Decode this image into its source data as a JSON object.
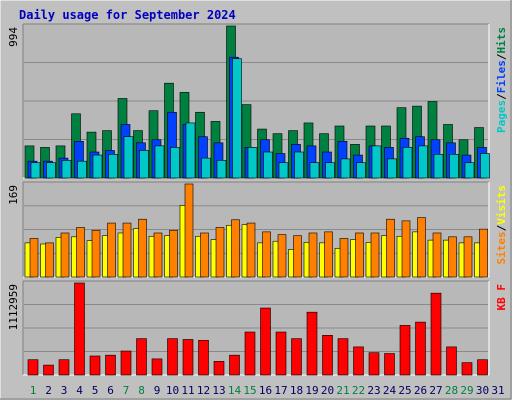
{
  "chart_data": {
    "type": "bar",
    "title": "Daily usage for September 2024",
    "colors": {
      "background": "#c0c0c0",
      "plot_bg": "#b8b8b8",
      "grid": "#8a8a8a",
      "title": "#0000c0",
      "pages": "#00c8c8",
      "files": "#0040ff",
      "hits": "#008040",
      "visits": "#ffff00",
      "sites": "#ff8000",
      "kbf": "#ff0000",
      "weekday": "#000060",
      "weekend": "#008040"
    },
    "x": [
      "1",
      "2",
      "3",
      "4",
      "5",
      "6",
      "7",
      "8",
      "9",
      "10",
      "11",
      "12",
      "13",
      "14",
      "15",
      "16",
      "17",
      "18",
      "19",
      "20",
      "21",
      "22",
      "23",
      "24",
      "25",
      "26",
      "27",
      "28",
      "29",
      "30",
      "31"
    ],
    "weekend_days": [
      "1",
      "7",
      "8",
      "14",
      "15",
      "21",
      "22",
      "28",
      "29"
    ],
    "panels": [
      {
        "id": "hits-panel",
        "ytick": "994",
        "ymax": 994,
        "side_label": [
          {
            "text": "Pages",
            "color": "#00c8c8"
          },
          {
            "text": "/",
            "color": "#000000"
          },
          {
            "text": "Files",
            "color": "#0040ff"
          },
          {
            "text": "/",
            "color": "#000000"
          },
          {
            "text": "Hits",
            "color": "#008040"
          }
        ],
        "series": [
          {
            "key": "hits",
            "color": "#008040",
            "values": [
              210,
              200,
              210,
              420,
              300,
              310,
              520,
              310,
              440,
              620,
              560,
              430,
              370,
              994,
              480,
              320,
              290,
              310,
              360,
              290,
              340,
              220,
              340,
              340,
              460,
              470,
              500,
              350,
              250,
              330,
              0
            ]
          },
          {
            "key": "files",
            "color": "#0040ff",
            "values": [
              110,
              110,
              130,
              240,
              170,
              180,
              350,
              230,
              250,
              430,
              350,
              270,
              230,
              790,
              200,
              250,
              160,
              220,
              210,
              170,
              240,
              150,
              210,
              200,
              260,
              270,
              250,
              230,
              150,
              200,
              0
            ]
          },
          {
            "key": "pages",
            "color": "#00c8c8",
            "values": [
              100,
              100,
              115,
              110,
              150,
              155,
              270,
              180,
              210,
              200,
              360,
              130,
              115,
              780,
              200,
              170,
              100,
              170,
              100,
              100,
              125,
              100,
              210,
              125,
              200,
              210,
              155,
              155,
              100,
              160,
              0
            ]
          }
        ]
      },
      {
        "id": "visits-panel",
        "ytick": "169",
        "ymax": 169,
        "side_label": [
          {
            "text": "Sites",
            "color": "#ff8000"
          },
          {
            "text": "/",
            "color": "#000000"
          },
          {
            "text": "Visits",
            "color": "#ffff00"
          }
        ],
        "series": [
          {
            "key": "visits",
            "color": "#ffff00",
            "values": [
              62,
              60,
              72,
              73,
              66,
              75,
              80,
              88,
              74,
              75,
              130,
              74,
              68,
              94,
              95,
              62,
              65,
              50,
              63,
              62,
              52,
              68,
              63,
              75,
              74,
              82,
              67,
              67,
              62,
              62,
              0
            ]
          },
          {
            "key": "sites",
            "color": "#ff8000",
            "values": [
              70,
              62,
              80,
              90,
              85,
              98,
              98,
              105,
              80,
              85,
              169,
              80,
              90,
              104,
              98,
              82,
              77,
              75,
              80,
              82,
              70,
              80,
              80,
              105,
              102,
              108,
              80,
              73,
              73,
              87,
              0
            ]
          }
        ]
      },
      {
        "id": "kbf-panel",
        "ytick": "1112959",
        "ymax": 1112959,
        "side_label": [
          {
            "text": "KB F",
            "color": "#ff0000"
          }
        ],
        "series": [
          {
            "key": "kbf",
            "color": "#ff0000",
            "values": [
              185000,
              120000,
              185000,
              1112959,
              230000,
              240000,
              290000,
              440000,
              195000,
              440000,
              430000,
              420000,
              165000,
              240000,
              520000,
              810000,
              520000,
              440000,
              760000,
              480000,
              440000,
              340000,
              270000,
              260000,
              600000,
              640000,
              990000,
              340000,
              150000,
              185000,
              0
            ]
          }
        ]
      }
    ]
  }
}
